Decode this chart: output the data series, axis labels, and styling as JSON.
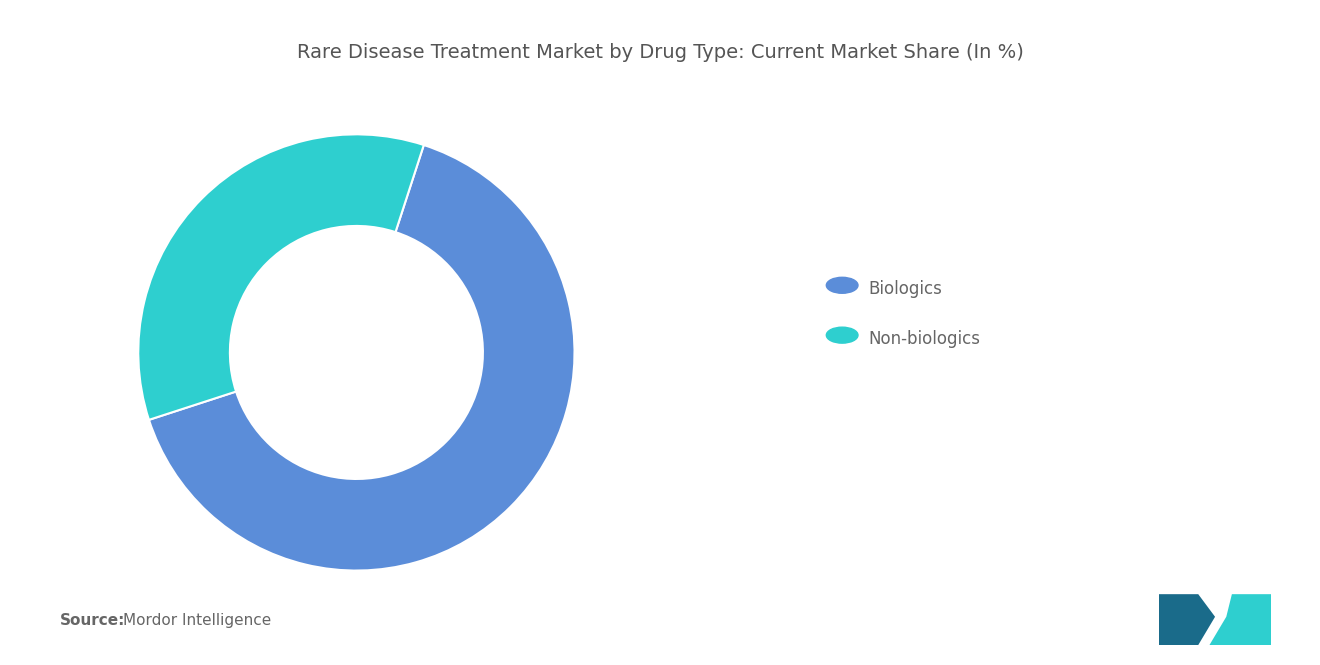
{
  "title": "Rare Disease Treatment Market by Drug Type: Current Market Share (In %)",
  "labels": [
    "Biologics",
    "Non-biologics"
  ],
  "values": [
    65,
    35
  ],
  "colors": [
    "#5b8dd9",
    "#2ecfcf"
  ],
  "background_color": "#ffffff",
  "title_color": "#555555",
  "title_fontsize": 14,
  "legend_fontsize": 12,
  "legend_text_color": "#666666",
  "source_bold": "Source:",
  "source_text": "Mordor Intelligence",
  "source_fontsize": 11,
  "donut_width": 0.42,
  "start_angle": 72
}
